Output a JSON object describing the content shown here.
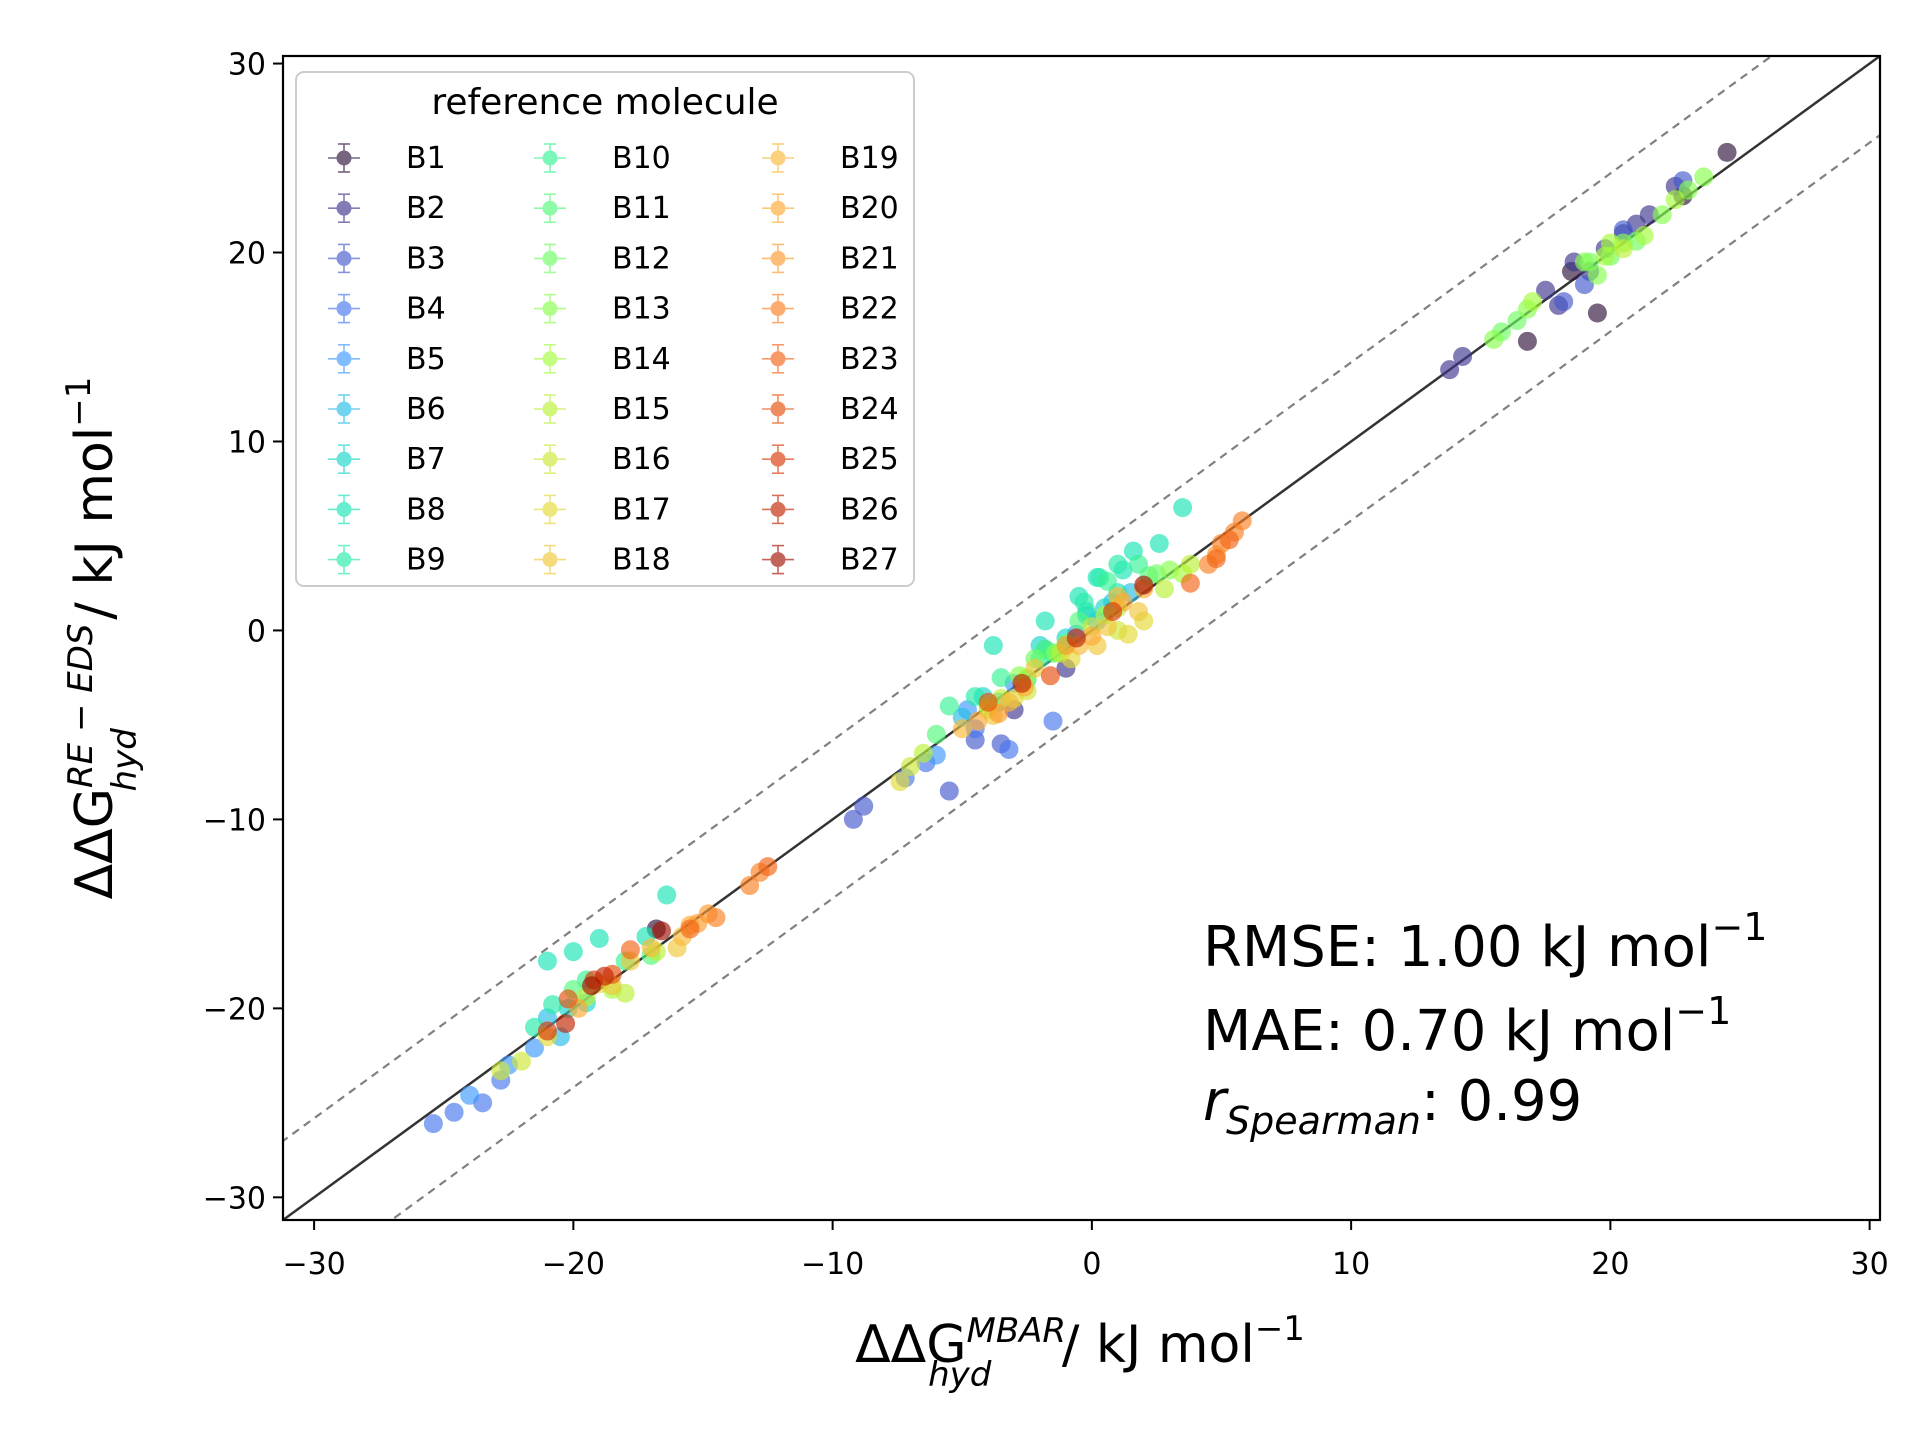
{
  "chart_data": {
    "type": "scatter",
    "xlabel": {
      "prefix": "ΔΔG",
      "sup": "MBAR",
      "sub": "hyd",
      "unit": " / kJ mol",
      "unit_exp": "−1"
    },
    "ylabel": {
      "prefix": "ΔΔG",
      "sup": "RE − EDS",
      "sub": "hyd",
      "unit": " / kJ mol",
      "unit_exp": "−1"
    },
    "xlim": [
      -31.2,
      30.4
    ],
    "ylim": [
      -31.2,
      30.4
    ],
    "xticks": [
      -30,
      -20,
      -10,
      0,
      10,
      20,
      30
    ],
    "yticks": [
      -30,
      -20,
      -10,
      0,
      10,
      20,
      30
    ],
    "xtick_labels": [
      "−30",
      "−20",
      "−10",
      "0",
      "10",
      "20",
      "30"
    ],
    "ytick_labels": [
      "−30",
      "−20",
      "−10",
      "0",
      "10",
      "20",
      "30"
    ],
    "identity_line": {
      "style": "solid",
      "color": "#333333"
    },
    "band_lines": {
      "offset": 4.184,
      "style": "dashed",
      "color": "#808080"
    },
    "legend": {
      "title": "reference molecule",
      "placement": "upper-left",
      "columns": 3,
      "entries": [
        "B1",
        "B2",
        "B3",
        "B4",
        "B5",
        "B6",
        "B7",
        "B8",
        "B9",
        "B10",
        "B11",
        "B12",
        "B13",
        "B14",
        "B15",
        "B16",
        "B17",
        "B18",
        "B19",
        "B20",
        "B21",
        "B22",
        "B23",
        "B24",
        "B25",
        "B26",
        "B27"
      ],
      "colors": [
        "#30123b",
        "#3e378f",
        "#4559cb",
        "#4777ef",
        "#3e9bfe",
        "#28bceb",
        "#18d6cb",
        "#1ae4b6",
        "#26eca9",
        "#35f394",
        "#52fa7a",
        "#6efe62",
        "#88ff4e",
        "#a4fc3b",
        "#bbf135",
        "#cfe737",
        "#e3d936",
        "#f0c73a",
        "#f9ba38",
        "#feaa33",
        "#fe9b2d",
        "#fb8022",
        "#f46516",
        "#e6500c",
        "#d93806",
        "#c22402",
        "#a11201"
      ]
    },
    "stats": [
      {
        "label": "RMSE: 1.00 kJ mol",
        "exp": "−1"
      },
      {
        "label": "MAE: 0.70 kJ mol",
        "exp": "−1"
      },
      {
        "label": "r",
        "sub": "Spearman",
        "rest": ": 0.99"
      }
    ],
    "series": [
      {
        "name": "B1",
        "points": [
          [
            24.5,
            25.3
          ],
          [
            22.8,
            23.0
          ],
          [
            19.5,
            16.8
          ],
          [
            18.5,
            19.0
          ],
          [
            16.8,
            15.3
          ],
          [
            -16.8,
            -15.8
          ]
        ]
      },
      {
        "name": "B2",
        "points": [
          [
            22.5,
            23.5
          ],
          [
            21.5,
            22.0
          ],
          [
            20.5,
            21.0
          ],
          [
            19.8,
            20.2
          ],
          [
            18.6,
            19.5
          ],
          [
            17.5,
            18.0
          ],
          [
            18.0,
            17.2
          ],
          [
            14.3,
            14.5
          ],
          [
            13.8,
            13.8
          ],
          [
            21.0,
            21.5
          ],
          [
            19.2,
            19.0
          ],
          [
            -1.0,
            -2.0
          ],
          [
            -3.0,
            -4.2
          ]
        ]
      },
      {
        "name": "B3",
        "points": [
          [
            22.8,
            23.8
          ],
          [
            20.5,
            21.2
          ],
          [
            19.0,
            18.3
          ],
          [
            18.2,
            17.4
          ],
          [
            -4.5,
            -5.8
          ],
          [
            -3.5,
            -6.0
          ],
          [
            -5.5,
            -8.5
          ],
          [
            -9.2,
            -10.0
          ],
          [
            -8.8,
            -9.3
          ]
        ]
      },
      {
        "name": "B4",
        "points": [
          [
            -25.4,
            -26.1
          ],
          [
            -24.6,
            -25.5
          ],
          [
            -23.5,
            -25.0
          ],
          [
            -22.8,
            -23.8
          ],
          [
            -6.4,
            -7.0
          ],
          [
            -7.2,
            -7.8
          ],
          [
            -3.2,
            -6.3
          ],
          [
            -1.5,
            -4.8
          ],
          [
            -4.5,
            -5.2
          ]
        ]
      },
      {
        "name": "B5",
        "points": [
          [
            -24.0,
            -24.6
          ],
          [
            -22.5,
            -23.0
          ],
          [
            -21.5,
            -22.1
          ],
          [
            -6.0,
            -6.6
          ],
          [
            -4.8,
            -4.2
          ],
          [
            -3.0,
            -2.8
          ],
          [
            -0.6,
            -0.2
          ],
          [
            0.2,
            0.5
          ]
        ]
      },
      {
        "name": "B6",
        "points": [
          [
            -20.5,
            -21.5
          ],
          [
            -21.0,
            -20.5
          ],
          [
            -5.0,
            -4.6
          ],
          [
            -3.6,
            -3.8
          ],
          [
            -1.8,
            -1.0
          ],
          [
            -0.2,
            0.8
          ],
          [
            0.8,
            1.5
          ],
          [
            1.5,
            2.0
          ]
        ]
      },
      {
        "name": "B7",
        "points": [
          [
            -19.5,
            -19.7
          ],
          [
            -20.2,
            -20.0
          ],
          [
            -4.2,
            -3.5
          ],
          [
            -2.5,
            -2.6
          ],
          [
            -1.0,
            -0.4
          ],
          [
            0.5,
            1.2
          ],
          [
            -2.0,
            -0.8
          ]
        ]
      },
      {
        "name": "B8",
        "points": [
          [
            -21.0,
            -17.5
          ],
          [
            -20.0,
            -17.0
          ],
          [
            -19.0,
            -16.3
          ],
          [
            -16.4,
            -14.0
          ],
          [
            -17.2,
            -16.2
          ],
          [
            -0.5,
            1.8
          ],
          [
            0.2,
            2.8
          ],
          [
            1.2,
            3.2
          ],
          [
            1.6,
            4.2
          ],
          [
            3.5,
            6.5
          ],
          [
            1.0,
            2.0
          ],
          [
            -0.2,
            1.0
          ],
          [
            2.6,
            4.6
          ],
          [
            -3.8,
            -0.8
          ],
          [
            -1.8,
            0.5
          ]
        ]
      },
      {
        "name": "B9",
        "points": [
          [
            -21.5,
            -21.0
          ],
          [
            -20.8,
            -19.8
          ],
          [
            -4.5,
            -3.5
          ],
          [
            -2.0,
            -1.5
          ],
          [
            1.0,
            3.5
          ],
          [
            0.3,
            2.8
          ],
          [
            -0.3,
            1.5
          ]
        ]
      },
      {
        "name": "B10",
        "points": [
          [
            -18.0,
            -17.5
          ],
          [
            -19.5,
            -18.5
          ],
          [
            -3.5,
            -2.5
          ],
          [
            -1.5,
            -1.2
          ],
          [
            0.6,
            2.6
          ],
          [
            1.8,
            3.5
          ],
          [
            -5.5,
            -4.0
          ]
        ]
      },
      {
        "name": "B11",
        "points": [
          [
            -20.0,
            -19.0
          ],
          [
            -17.0,
            -17.2
          ],
          [
            -1.8,
            -1.0
          ],
          [
            -0.5,
            0.5
          ],
          [
            2.2,
            2.9
          ],
          [
            -6.0,
            -5.5
          ]
        ]
      },
      {
        "name": "B12",
        "points": [
          [
            19.2,
            19.5
          ],
          [
            20.0,
            19.8
          ],
          [
            21.0,
            20.6
          ],
          [
            15.8,
            15.8
          ],
          [
            16.4,
            16.4
          ],
          [
            -2.2,
            -1.5
          ],
          [
            -1.0,
            -0.7
          ],
          [
            2.5,
            3.0
          ]
        ]
      },
      {
        "name": "B13",
        "points": [
          [
            19.0,
            19.5
          ],
          [
            20.5,
            20.5
          ],
          [
            22.0,
            22.0
          ],
          [
            23.0,
            23.3
          ],
          [
            23.6,
            24.0
          ],
          [
            15.5,
            15.4
          ],
          [
            16.8,
            17.0
          ],
          [
            -2.8,
            -2.4
          ],
          [
            -1.4,
            -1.2
          ],
          [
            3.0,
            3.2
          ],
          [
            19.5,
            18.8
          ]
        ]
      },
      {
        "name": "B14",
        "points": [
          [
            20.0,
            20.5
          ],
          [
            21.3,
            20.9
          ],
          [
            19.8,
            19.8
          ],
          [
            22.5,
            22.8
          ],
          [
            17.0,
            17.4
          ],
          [
            -18.5,
            -19.0
          ],
          [
            -4.0,
            -4.0
          ],
          [
            -2.5,
            -2.5
          ],
          [
            0.5,
            0.8
          ],
          [
            3.5,
            3.0
          ]
        ]
      },
      {
        "name": "B15",
        "points": [
          [
            -18.0,
            -19.2
          ],
          [
            -19.5,
            -19.4
          ],
          [
            -16.8,
            -17.0
          ],
          [
            -6.5,
            -6.5
          ],
          [
            -3.5,
            -3.6
          ],
          [
            -1.2,
            -1.2
          ],
          [
            1.0,
            1.2
          ],
          [
            2.8,
            2.2
          ],
          [
            3.8,
            3.5
          ],
          [
            20.5,
            20.2
          ]
        ]
      },
      {
        "name": "B16",
        "points": [
          [
            -22.8,
            -23.3
          ],
          [
            -22.0,
            -22.8
          ],
          [
            -7.0,
            -7.2
          ],
          [
            -4.0,
            -4.2
          ],
          [
            -2.5,
            -3.2
          ],
          [
            0.0,
            0.2
          ],
          [
            1.0,
            0.0
          ]
        ]
      },
      {
        "name": "B17",
        "points": [
          [
            -21.0,
            -21.5
          ],
          [
            -19.0,
            -18.7
          ],
          [
            -7.4,
            -8.0
          ],
          [
            -3.0,
            -3.6
          ],
          [
            -0.8,
            -1.5
          ],
          [
            1.4,
            -0.2
          ],
          [
            2.0,
            0.5
          ]
        ]
      },
      {
        "name": "B18",
        "points": [
          [
            -18.5,
            -18.8
          ],
          [
            -17.8,
            -17.5
          ],
          [
            -16.0,
            -16.8
          ],
          [
            -3.8,
            -4.5
          ],
          [
            -2.2,
            -2.0
          ],
          [
            0.2,
            -0.8
          ],
          [
            0.6,
            0.2
          ],
          [
            1.8,
            1.0
          ]
        ]
      },
      {
        "name": "B19",
        "points": [
          [
            -17.0,
            -16.8
          ],
          [
            -15.8,
            -16.2
          ],
          [
            -5.0,
            -5.2
          ],
          [
            -3.2,
            -3.8
          ],
          [
            -0.5,
            -0.8
          ],
          [
            1.0,
            1.8
          ]
        ]
      },
      {
        "name": "B20",
        "points": [
          [
            -19.8,
            -20.0
          ],
          [
            -15.5,
            -15.6
          ],
          [
            -4.4,
            -4.8
          ],
          [
            -2.6,
            -3.0
          ],
          [
            0.0,
            -0.3
          ],
          [
            1.2,
            1.5
          ],
          [
            2.0,
            2.2
          ]
        ]
      },
      {
        "name": "B21",
        "points": [
          [
            -14.8,
            -15.0
          ],
          [
            -15.2,
            -15.5
          ],
          [
            -3.6,
            -4.4
          ],
          [
            4.8,
            4.0
          ],
          [
            -1.0,
            -0.8
          ]
        ]
      },
      {
        "name": "B22",
        "points": [
          [
            -14.5,
            -15.2
          ],
          [
            -12.8,
            -12.8
          ],
          [
            -13.2,
            -13.5
          ],
          [
            5.5,
            5.2
          ],
          [
            5.8,
            5.8
          ],
          [
            5.0,
            4.6
          ],
          [
            4.5,
            3.5
          ]
        ]
      },
      {
        "name": "B23",
        "points": [
          [
            -17.8,
            -16.9
          ],
          [
            -15.5,
            -15.8
          ],
          [
            -12.5,
            -12.5
          ],
          [
            3.8,
            2.5
          ],
          [
            4.8,
            3.8
          ],
          [
            5.3,
            4.8
          ]
        ]
      },
      {
        "name": "B24",
        "points": [
          [
            -18.5,
            -18.2
          ],
          [
            -20.2,
            -19.5
          ],
          [
            -4.0,
            -3.8
          ],
          [
            -1.6,
            -2.4
          ]
        ]
      },
      {
        "name": "B25",
        "points": [
          [
            -19.2,
            -18.5
          ],
          [
            -21.0,
            -21.2
          ],
          [
            0.8,
            1.0
          ]
        ]
      },
      {
        "name": "B26",
        "points": [
          [
            -20.3,
            -20.8
          ],
          [
            -18.8,
            -18.3
          ],
          [
            -2.7,
            -2.8
          ],
          [
            -0.6,
            -0.4
          ]
        ]
      },
      {
        "name": "B27",
        "points": [
          [
            -16.6,
            -15.9
          ],
          [
            2.0,
            2.4
          ],
          [
            -19.3,
            -18.8
          ]
        ]
      }
    ]
  }
}
